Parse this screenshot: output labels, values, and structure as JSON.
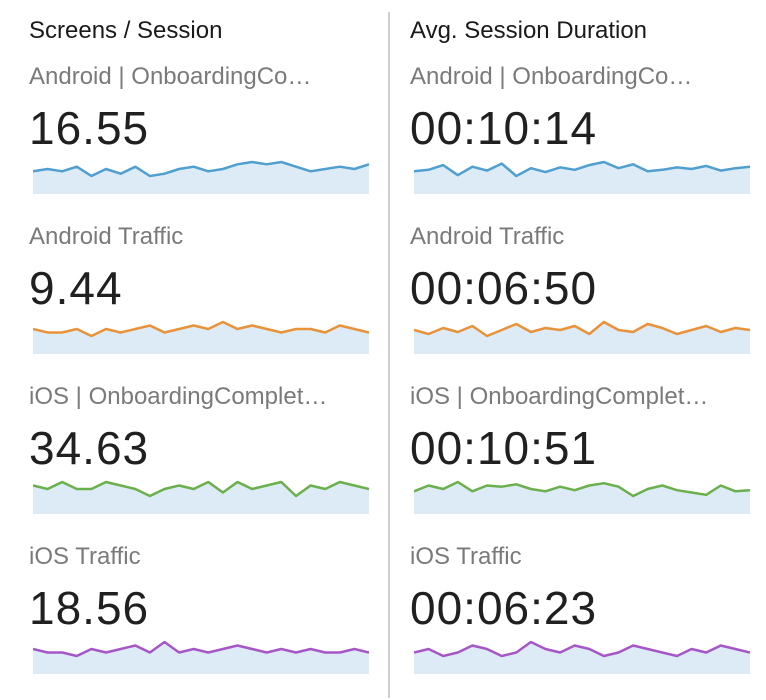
{
  "panels": [
    {
      "title": "Screens / Session",
      "metrics": [
        {
          "label": "Android | OnboardingCo…",
          "value": "16.55",
          "color": "#4f9fd0",
          "fill": "#ddebf7",
          "trend": [
            16.5,
            16.6,
            16.5,
            16.7,
            16.3,
            16.6,
            16.4,
            16.7,
            16.3,
            16.4,
            16.6,
            16.7,
            16.5,
            16.6,
            16.8,
            16.9,
            16.8,
            16.9,
            16.7,
            16.5,
            16.6,
            16.7,
            16.6,
            16.8
          ]
        },
        {
          "label": "Android Traffic",
          "value": "9.44",
          "color": "#e8923a",
          "fill": "#ddebf7",
          "trend": [
            9.5,
            9.4,
            9.4,
            9.5,
            9.3,
            9.5,
            9.4,
            9.5,
            9.6,
            9.4,
            9.5,
            9.6,
            9.5,
            9.7,
            9.5,
            9.6,
            9.5,
            9.4,
            9.5,
            9.5,
            9.4,
            9.6,
            9.5,
            9.4
          ]
        },
        {
          "label": "iOS | OnboardingComplet…",
          "value": "34.63",
          "color": "#6ab04c",
          "fill": "#ddebf7",
          "trend": [
            34.7,
            34.6,
            34.8,
            34.6,
            34.6,
            34.8,
            34.7,
            34.6,
            34.4,
            34.6,
            34.7,
            34.6,
            34.8,
            34.5,
            34.8,
            34.6,
            34.7,
            34.8,
            34.4,
            34.7,
            34.6,
            34.8,
            34.7,
            34.6
          ]
        },
        {
          "label": "iOS Traffic",
          "value": "18.56",
          "color": "#a656c7",
          "fill": "#ddebf7",
          "trend": [
            18.6,
            18.5,
            18.5,
            18.4,
            18.6,
            18.5,
            18.6,
            18.7,
            18.5,
            18.8,
            18.5,
            18.6,
            18.5,
            18.6,
            18.7,
            18.6,
            18.5,
            18.6,
            18.5,
            18.6,
            18.5,
            18.5,
            18.6,
            18.5
          ]
        }
      ]
    },
    {
      "title": "Avg. Session Duration",
      "metrics": [
        {
          "label": "Android | OnboardingCo…",
          "value": "00:10:14",
          "color": "#4f9fd0",
          "fill": "#ddebf7",
          "trend": [
            610,
            612,
            618,
            605,
            616,
            611,
            620,
            604,
            614,
            609,
            615,
            612,
            618,
            622,
            614,
            619,
            610,
            612,
            615,
            613,
            617,
            611,
            614,
            616
          ]
        },
        {
          "label": "Android Traffic",
          "value": "00:06:50",
          "color": "#e8923a",
          "fill": "#ddebf7",
          "trend": [
            410,
            408,
            411,
            409,
            412,
            407,
            410,
            413,
            409,
            411,
            410,
            412,
            408,
            414,
            410,
            409,
            413,
            411,
            408,
            410,
            412,
            409,
            411,
            410
          ]
        },
        {
          "label": "iOS | OnboardingComplet…",
          "value": "00:10:51",
          "color": "#6ab04c",
          "fill": "#ddebf7",
          "trend": [
            650,
            655,
            652,
            658,
            650,
            655,
            654,
            656,
            652,
            650,
            654,
            651,
            655,
            657,
            654,
            646,
            652,
            655,
            651,
            649,
            647,
            655,
            650,
            651
          ]
        },
        {
          "label": "iOS Traffic",
          "value": "00:06:23",
          "color": "#a656c7",
          "fill": "#ddebf7",
          "trend": [
            383,
            384,
            382,
            383,
            385,
            384,
            382,
            383,
            386,
            384,
            383,
            385,
            384,
            382,
            383,
            385,
            384,
            383,
            382,
            384,
            383,
            385,
            384,
            383
          ]
        }
      ]
    }
  ]
}
